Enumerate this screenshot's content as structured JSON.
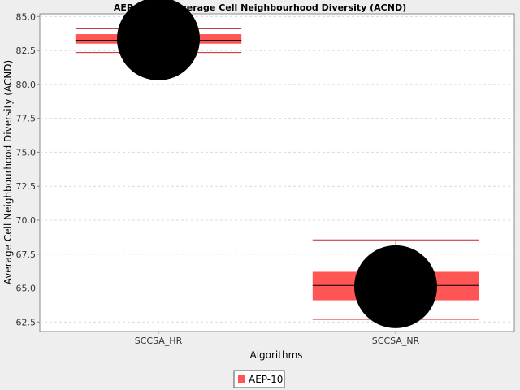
{
  "chart_data": {
    "type": "boxplot",
    "title": "AEP-10 and Average Cell Neighbourhood Diversity (ACND)",
    "xlabel": "Algorithms",
    "ylabel": "Average Cell Neighbourhood Diversity (ACND)",
    "ylim": [
      61.8,
      85.2
    ],
    "yticks": [
      "62.5",
      "65.0",
      "67.5",
      "70.0",
      "72.5",
      "75.0",
      "77.5",
      "80.0",
      "82.5",
      "85.0"
    ],
    "grid": true,
    "legend_position": "bottom-center",
    "categories": [
      "SCCSA_HR",
      "SCCSA_NR"
    ],
    "series": [
      {
        "name": "AEP-10",
        "color": "#ff5555",
        "boxes": [
          {
            "category": "SCCSA_HR",
            "whisker_low": 82.35,
            "q1": 83.0,
            "median": 83.25,
            "q3": 83.7,
            "whisker_high": 84.1,
            "mean": 83.35
          },
          {
            "category": "SCCSA_NR",
            "whisker_low": 62.7,
            "q1": 64.1,
            "median": 65.2,
            "q3": 66.2,
            "whisker_high": 68.55,
            "mean": 65.1
          }
        ]
      }
    ]
  }
}
